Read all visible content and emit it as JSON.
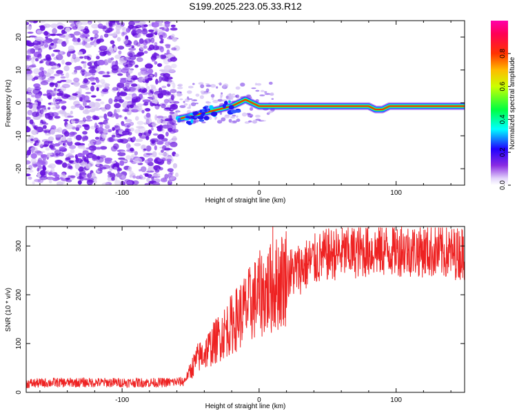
{
  "title": "S199.2025.223.05.33.R12",
  "colors": {
    "snr_line": "#ee2222",
    "noise_purple_dark": "#6611dd",
    "noise_purple_light": "#d6c4f2",
    "axis": "#000000",
    "colorbar_stops": [
      "#ffffff",
      "#8a2be2",
      "#0000ff",
      "#00ffff",
      "#00ff00",
      "#ffff00",
      "#ff8000",
      "#ff0000",
      "#ff00aa"
    ]
  },
  "chart_data": [
    {
      "type": "heatmap",
      "name": "spectrogram",
      "xlabel": "Height of straight line (km)",
      "ylabel": "Frequency (Hz)",
      "xlim": [
        -170,
        150
      ],
      "ylim": [
        -25,
        25
      ],
      "xticks": [
        -100,
        0,
        100
      ],
      "yticks": [
        -20,
        -10,
        0,
        10,
        20
      ],
      "noise_region_x": [
        -170,
        -60
      ],
      "signal_trace": {
        "x": [
          -60,
          -50,
          -40,
          -30,
          -20,
          -15,
          -10,
          -5,
          0,
          10,
          20,
          40,
          60,
          80,
          85,
          90,
          95,
          100,
          120,
          150
        ],
        "freq_hz": [
          -5,
          -4,
          -3,
          -2,
          -1,
          0,
          1,
          0,
          -1,
          -1,
          -1,
          -1,
          -1,
          -1,
          -2,
          -2,
          -1,
          -1,
          -1,
          -1
        ]
      },
      "colorbar": {
        "label": "Normalized spectral amplitude",
        "range": [
          0,
          1
        ],
        "ticks": [
          "0.0",
          "0.2",
          "0.4",
          "0.6",
          "0.8"
        ]
      }
    },
    {
      "type": "line",
      "name": "snr",
      "xlabel": "Height of straight line (km)",
      "ylabel": "SNR (10 * v/v)",
      "xlim": [
        -170,
        150
      ],
      "ylim": [
        0,
        340
      ],
      "xticks": [
        -100,
        0,
        100
      ],
      "yticks": [
        0,
        100,
        200,
        300
      ],
      "series": [
        {
          "name": "SNR",
          "x": [
            -170,
            -150,
            -130,
            -110,
            -90,
            -70,
            -55,
            -50,
            -45,
            -40,
            -30,
            -20,
            -10,
            0,
            10,
            20,
            30,
            40,
            50,
            60,
            80,
            100,
            120,
            140,
            150
          ],
          "y": [
            18,
            20,
            20,
            20,
            20,
            20,
            22,
            45,
            70,
            80,
            110,
            140,
            170,
            200,
            215,
            240,
            255,
            270,
            282,
            285,
            290,
            292,
            290,
            285,
            285
          ]
        }
      ],
      "spikes": [
        {
          "x": 10,
          "y": 340
        },
        {
          "x": 104,
          "y": 340
        },
        {
          "x": 148,
          "y": 335
        }
      ]
    }
  ]
}
